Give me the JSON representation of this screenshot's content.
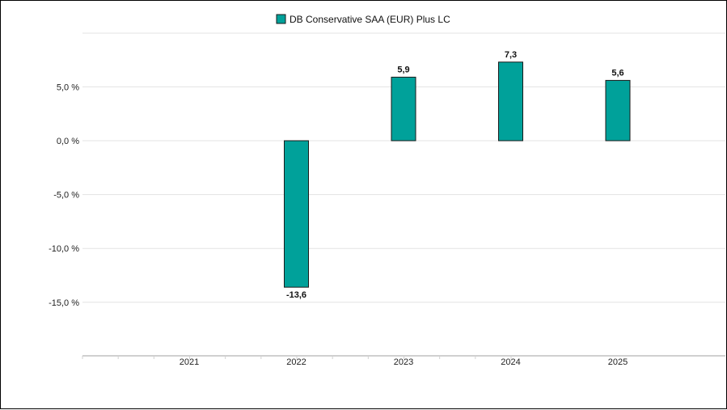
{
  "chart_data": {
    "type": "bar",
    "categories": [
      "2021",
      "2022",
      "2023",
      "2024",
      "2025"
    ],
    "series": [
      {
        "name": "DB Conservative SAA (EUR) Plus LC",
        "values": [
          null,
          -13.6,
          5.9,
          7.3,
          5.6
        ],
        "labels": [
          "",
          "-13,6",
          "5,9",
          "7,3",
          "5,6"
        ]
      }
    ],
    "y_ticks": [
      5,
      0,
      -5,
      -10,
      -15
    ],
    "y_tick_labels": [
      "5,0 %",
      "0,0 %",
      "-5,0 %",
      "-10,0 %",
      "-15,0 %"
    ],
    "ylim": [
      -20,
      10
    ],
    "grid": true,
    "legend_position": "top-center",
    "colors": {
      "bar": "#00a19a",
      "bar_stroke": "#1a1a1a",
      "grid": "#e3e3e3"
    }
  }
}
